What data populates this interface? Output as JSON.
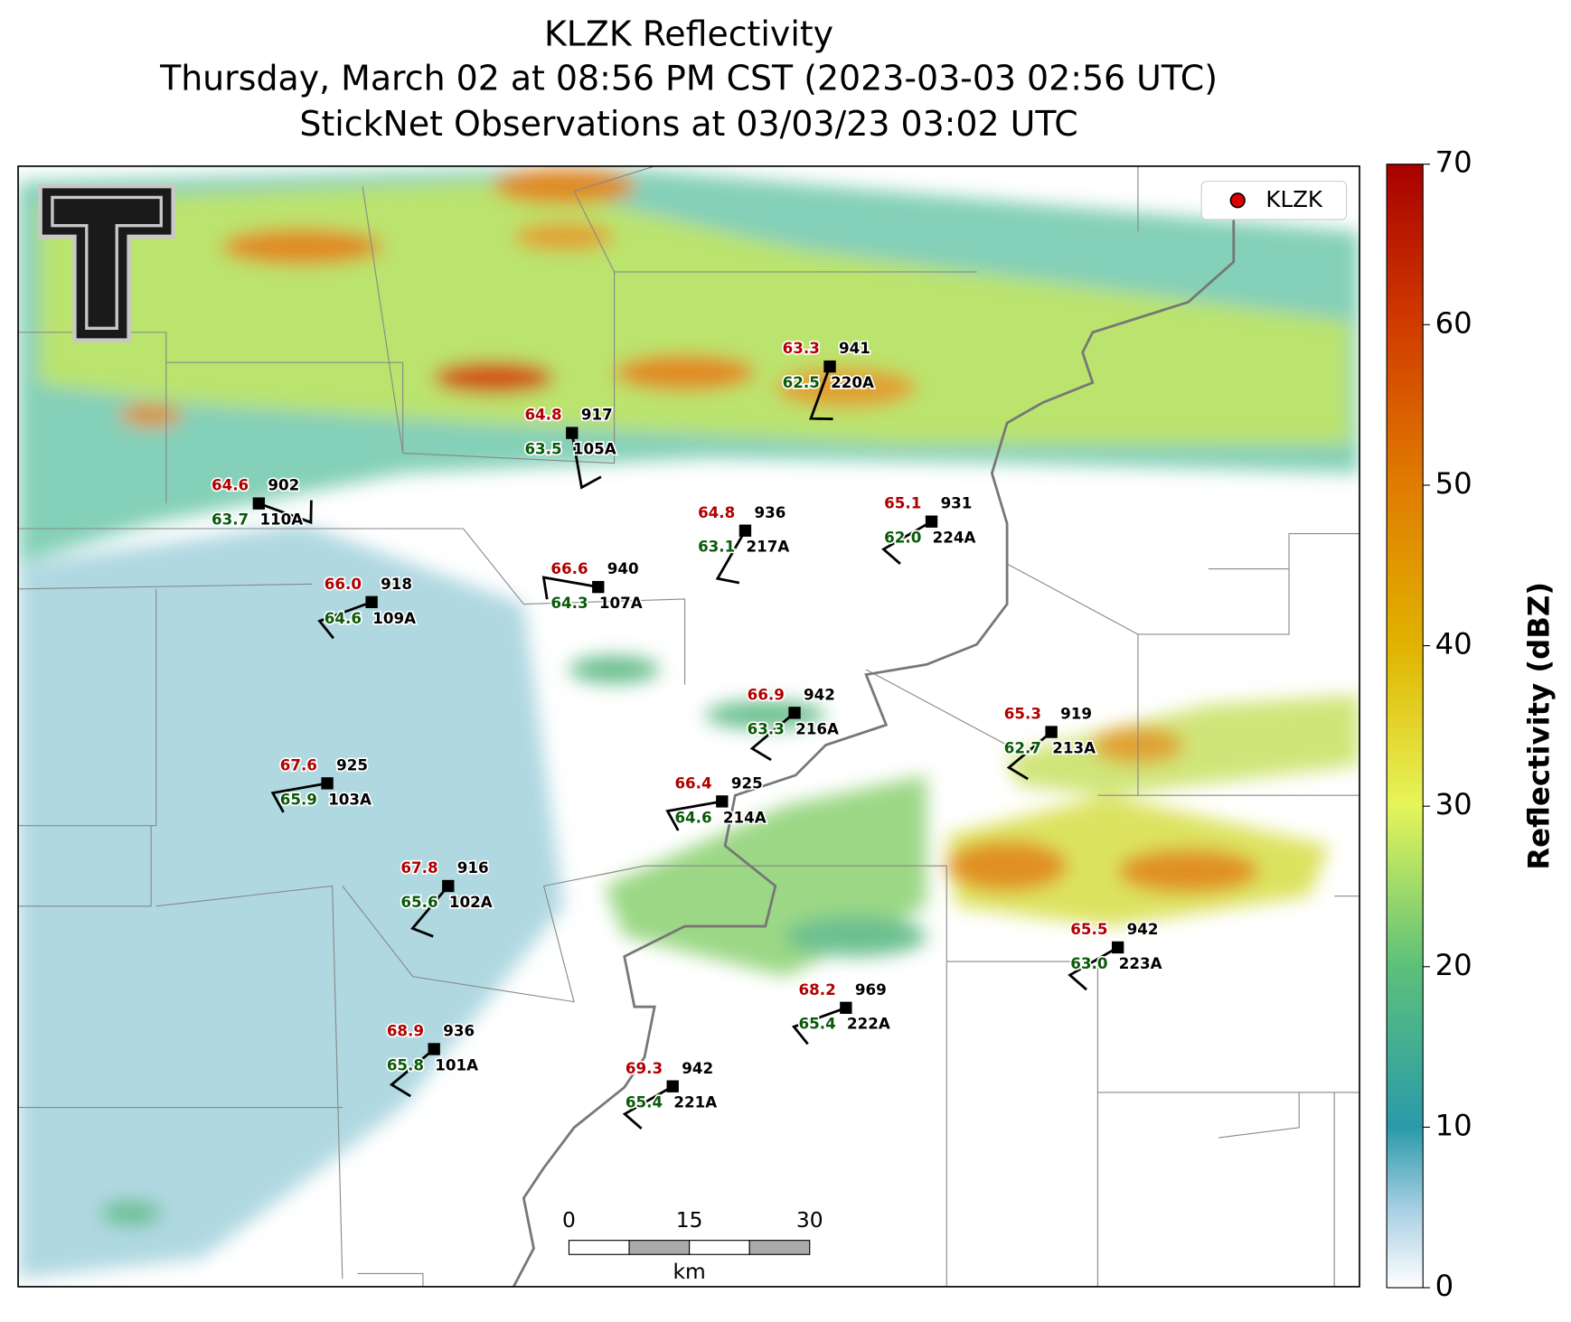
{
  "header": {
    "title": "KLZK Reflectivity",
    "subtitle": "Thursday, March 02 at 08:56 PM CST (2023-03-03 02:56 UTC)",
    "subtitle2": "StickNet Observations at 03/03/23 03:02 UTC"
  },
  "legend": {
    "label": "KLZK",
    "color": "#e00000"
  },
  "colorbar": {
    "label": "Reflectivity (dBZ)",
    "lim": [
      0,
      70
    ],
    "ticks": [
      0,
      10,
      20,
      30,
      40,
      50,
      60,
      70
    ]
  },
  "scale_bar": {
    "lim": [
      0,
      30
    ],
    "ticks": [
      0,
      15,
      30
    ],
    "unit": "km"
  },
  "stations": [
    {
      "id": "220A",
      "temp": "63.3",
      "dew": "62.5",
      "pressure": "941"
    },
    {
      "id": "105A",
      "temp": "64.8",
      "dew": "63.5",
      "pressure": "917"
    },
    {
      "id": "110A",
      "temp": "64.6",
      "dew": "63.7",
      "pressure": "902"
    },
    {
      "id": "217A",
      "temp": "64.8",
      "dew": "63.1",
      "pressure": "936"
    },
    {
      "id": "224A",
      "temp": "65.1",
      "dew": "62.0",
      "pressure": "931"
    },
    {
      "id": "109A",
      "temp": "66.0",
      "dew": "64.6",
      "pressure": "918"
    },
    {
      "id": "107A",
      "temp": "66.6",
      "dew": "64.3",
      "pressure": "940"
    },
    {
      "id": "216A",
      "temp": "66.9",
      "dew": "63.3",
      "pressure": "942"
    },
    {
      "id": "213A",
      "temp": "65.3",
      "dew": "62.7",
      "pressure": "919"
    },
    {
      "id": "103A",
      "temp": "67.6",
      "dew": "65.9",
      "pressure": "925"
    },
    {
      "id": "214A",
      "temp": "66.4",
      "dew": "64.6",
      "pressure": "925"
    },
    {
      "id": "102A",
      "temp": "67.8",
      "dew": "65.6",
      "pressure": "916"
    },
    {
      "id": "223A",
      "temp": "65.5",
      "dew": "63.0",
      "pressure": "942"
    },
    {
      "id": "222A",
      "temp": "68.2",
      "dew": "65.4",
      "pressure": "969"
    },
    {
      "id": "101A",
      "temp": "68.9",
      "dew": "65.8",
      "pressure": "936"
    },
    {
      "id": "221A",
      "temp": "69.3",
      "dew": "65.4",
      "pressure": "942"
    }
  ]
}
